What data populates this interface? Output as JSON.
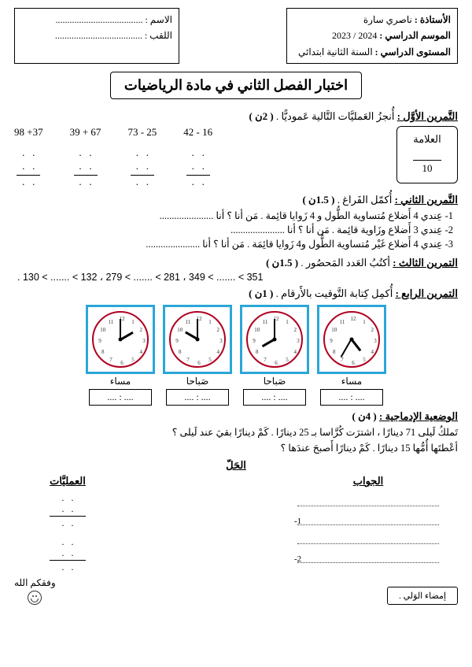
{
  "header": {
    "name_label": "الاسم :",
    "surname_label": "اللقب :",
    "teacher_label": "الأستاذة :",
    "teacher_name": "ناصري سارة",
    "year_label": "الموسم الدراسي :",
    "year_value": "2023 / 2024",
    "level_label": "المستوى الدراسي :",
    "level_value": "السنة الثانية ابتدائي"
  },
  "title": "اختبار الفصل الثاني في مادة الرياضيات",
  "grade": {
    "label": "العلامة",
    "max": "10"
  },
  "ex1": {
    "title": "التَّمرين الأوَّل :",
    "instr": "أُنجزُ العَمليَّات التَّالية عَموديًّا .",
    "pts": "( 2ن )",
    "ops": [
      "98 +37",
      "39 + 67",
      "73 - 25",
      "42 - 16"
    ]
  },
  "ex2": {
    "title": "التَّمرين الثاني :",
    "instr": "أُكمّل الفَراغ .",
    "pts": "( 1.5ن )",
    "items": [
      "1- عِندي 4 أَضلاع مُتساوية الطُّول و 4 زَوايا قائِمة . مَن أنا ؟ أنا ......................",
      "2- عِندي 3 أَضلاع وزَاوية قائِمة . مَن أنا ؟ أنا ......................",
      "3- عِندي 4 أَضلاع غَيْر مُتساوية الطُّول و4 زَوايا قائِمَة . مَن أنا ؟ أنا ......................"
    ]
  },
  "ex3": {
    "title": "التمرين الثالث :",
    "instr": "أكتُبُ العَدد المَحصُور .",
    "pts": "( 1.5ن )",
    "seq": ". 130 < ....... < 132    ،    279 < ....... < 281    ،    349 < ....... < 351"
  },
  "ex4": {
    "title": "التمرين الرابع :",
    "instr": "أُكمِل كِتابة التَّوقيت بالأَرقام .",
    "pts": "( 1ن )",
    "clocks": [
      {
        "hourAngle": 60,
        "minAngle": 0,
        "period": "مساء",
        "time": ".... : ...."
      },
      {
        "hourAngle": 300,
        "minAngle": 0,
        "period": "صَباحا",
        "time": ".... : ...."
      },
      {
        "hourAngle": 240,
        "minAngle": 0,
        "period": "صَباحا",
        "time": ".... : ...."
      },
      {
        "hourAngle": 142,
        "minAngle": 210,
        "period": "مساء",
        "time": ".... : ...."
      }
    ],
    "frame_color": "#2aa7d8",
    "face_border": "#b00020"
  },
  "situation": {
    "title": "الوضعية الإدماجية :",
    "pts": "( 4ن )",
    "lines": [
      "تَملكُ لَيلى 71 دينارًا ، اشترَت كُرَّاسا بـ 25 دينارًا . كَمْ دينارًا بقيَ عند لَيلى ؟",
      "أعْطتَها أُمُّها 15 دينارًا . كَمْ دينارًا أَصبحَ عندَها ؟"
    ],
    "solve": "الحَلّ",
    "ops_h": "العمليَّات",
    "ans_h": "الجواب",
    "nums": [
      "-1",
      "-2"
    ]
  },
  "footer": {
    "bless": "وفقكم الله",
    "sign": "إمضاء الوَلي   ."
  }
}
